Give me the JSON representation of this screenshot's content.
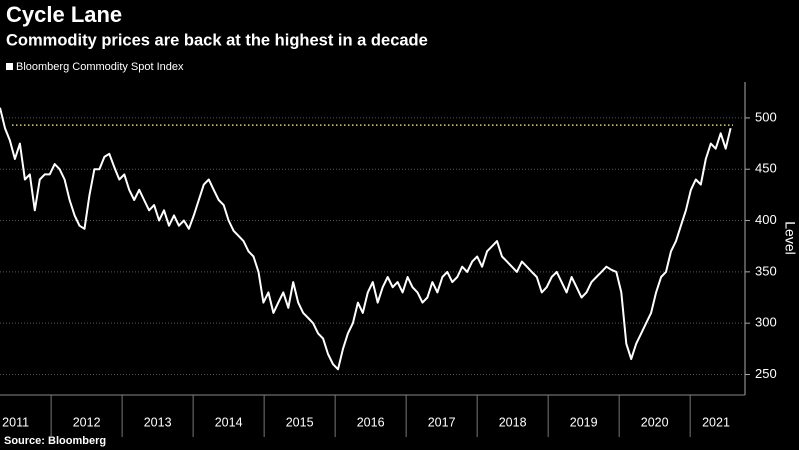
{
  "chart_data": {
    "type": "line",
    "title": "Cycle Lane",
    "subtitle": "Commodity prices are back at the highest in a decade",
    "y_label": "Level",
    "source": "Source: Bloomberg",
    "x": [
      2011.28,
      2011.35,
      2011.42,
      2011.49,
      2011.56,
      2011.63,
      2011.7,
      2011.77,
      2011.84,
      2011.91,
      2011.98,
      2012.05,
      2012.12,
      2012.19,
      2012.26,
      2012.33,
      2012.4,
      2012.47,
      2012.54,
      2012.61,
      2012.68,
      2012.75,
      2012.82,
      2012.89,
      2012.96,
      2013.03,
      2013.1,
      2013.17,
      2013.24,
      2013.31,
      2013.38,
      2013.45,
      2013.52,
      2013.59,
      2013.66,
      2013.73,
      2013.8,
      2013.87,
      2013.94,
      2014.01,
      2014.08,
      2014.15,
      2014.22,
      2014.29,
      2014.36,
      2014.43,
      2014.5,
      2014.57,
      2014.64,
      2014.71,
      2014.78,
      2014.85,
      2014.92,
      2014.99,
      2015.06,
      2015.13,
      2015.2,
      2015.27,
      2015.34,
      2015.41,
      2015.48,
      2015.55,
      2015.62,
      2015.69,
      2015.76,
      2015.83,
      2015.9,
      2015.97,
      2016.04,
      2016.11,
      2016.18,
      2016.25,
      2016.32,
      2016.39,
      2016.46,
      2016.53,
      2016.6,
      2016.67,
      2016.74,
      2016.81,
      2016.88,
      2016.95,
      2017.02,
      2017.09,
      2017.16,
      2017.23,
      2017.3,
      2017.37,
      2017.44,
      2017.51,
      2017.58,
      2017.65,
      2017.72,
      2017.79,
      2017.86,
      2017.93,
      2018.0,
      2018.07,
      2018.14,
      2018.21,
      2018.28,
      2018.35,
      2018.42,
      2018.49,
      2018.56,
      2018.63,
      2018.7,
      2018.77,
      2018.84,
      2018.91,
      2018.98,
      2019.05,
      2019.12,
      2019.19,
      2019.26,
      2019.33,
      2019.4,
      2019.47,
      2019.54,
      2019.61,
      2019.68,
      2019.75,
      2019.82,
      2019.89,
      2019.96,
      2020.03,
      2020.1,
      2020.17,
      2020.24,
      2020.31,
      2020.38,
      2020.45,
      2020.52,
      2020.59,
      2020.66,
      2020.73,
      2020.8,
      2020.87,
      2020.94,
      2021.01,
      2021.08,
      2021.15,
      2021.22,
      2021.29,
      2021.36,
      2021.43,
      2021.5,
      2021.57
    ],
    "series": [
      {
        "name": "Bloomberg Commodity Spot Index",
        "color": "#ffffff",
        "values": [
          510,
          490,
          478,
          460,
          475,
          440,
          445,
          410,
          440,
          445,
          445,
          455,
          450,
          440,
          420,
          405,
          395,
          392,
          425,
          450,
          450,
          462,
          465,
          452,
          440,
          445,
          430,
          420,
          430,
          420,
          410,
          415,
          400,
          410,
          395,
          405,
          395,
          400,
          392,
          405,
          420,
          435,
          440,
          430,
          420,
          415,
          400,
          390,
          385,
          380,
          370,
          365,
          350,
          320,
          330,
          310,
          320,
          330,
          315,
          340,
          320,
          310,
          305,
          300,
          290,
          285,
          270,
          260,
          255,
          275,
          290,
          300,
          320,
          310,
          330,
          340,
          320,
          335,
          345,
          335,
          340,
          330,
          345,
          335,
          330,
          320,
          325,
          340,
          330,
          345,
          350,
          340,
          345,
          355,
          350,
          360,
          365,
          355,
          370,
          375,
          380,
          365,
          360,
          355,
          350,
          360,
          355,
          350,
          345,
          330,
          335,
          345,
          350,
          340,
          330,
          345,
          335,
          325,
          330,
          340,
          345,
          350,
          355,
          352,
          350,
          330,
          280,
          265,
          280,
          290,
          300,
          310,
          330,
          345,
          350,
          370,
          380,
          395,
          410,
          430,
          440,
          435,
          460,
          475,
          470,
          485,
          470,
          490
        ]
      }
    ],
    "reference_line": {
      "value": 493,
      "color": "#d8d36a"
    },
    "xlim": [
      2011.28,
      2021.73
    ],
    "xticks": [
      2011,
      2012,
      2013,
      2014,
      2015,
      2016,
      2017,
      2018,
      2019,
      2020,
      2021
    ],
    "ylim": [
      230,
      535
    ],
    "yticks": [
      250,
      300,
      350,
      400,
      450,
      500
    ],
    "grid": true
  }
}
